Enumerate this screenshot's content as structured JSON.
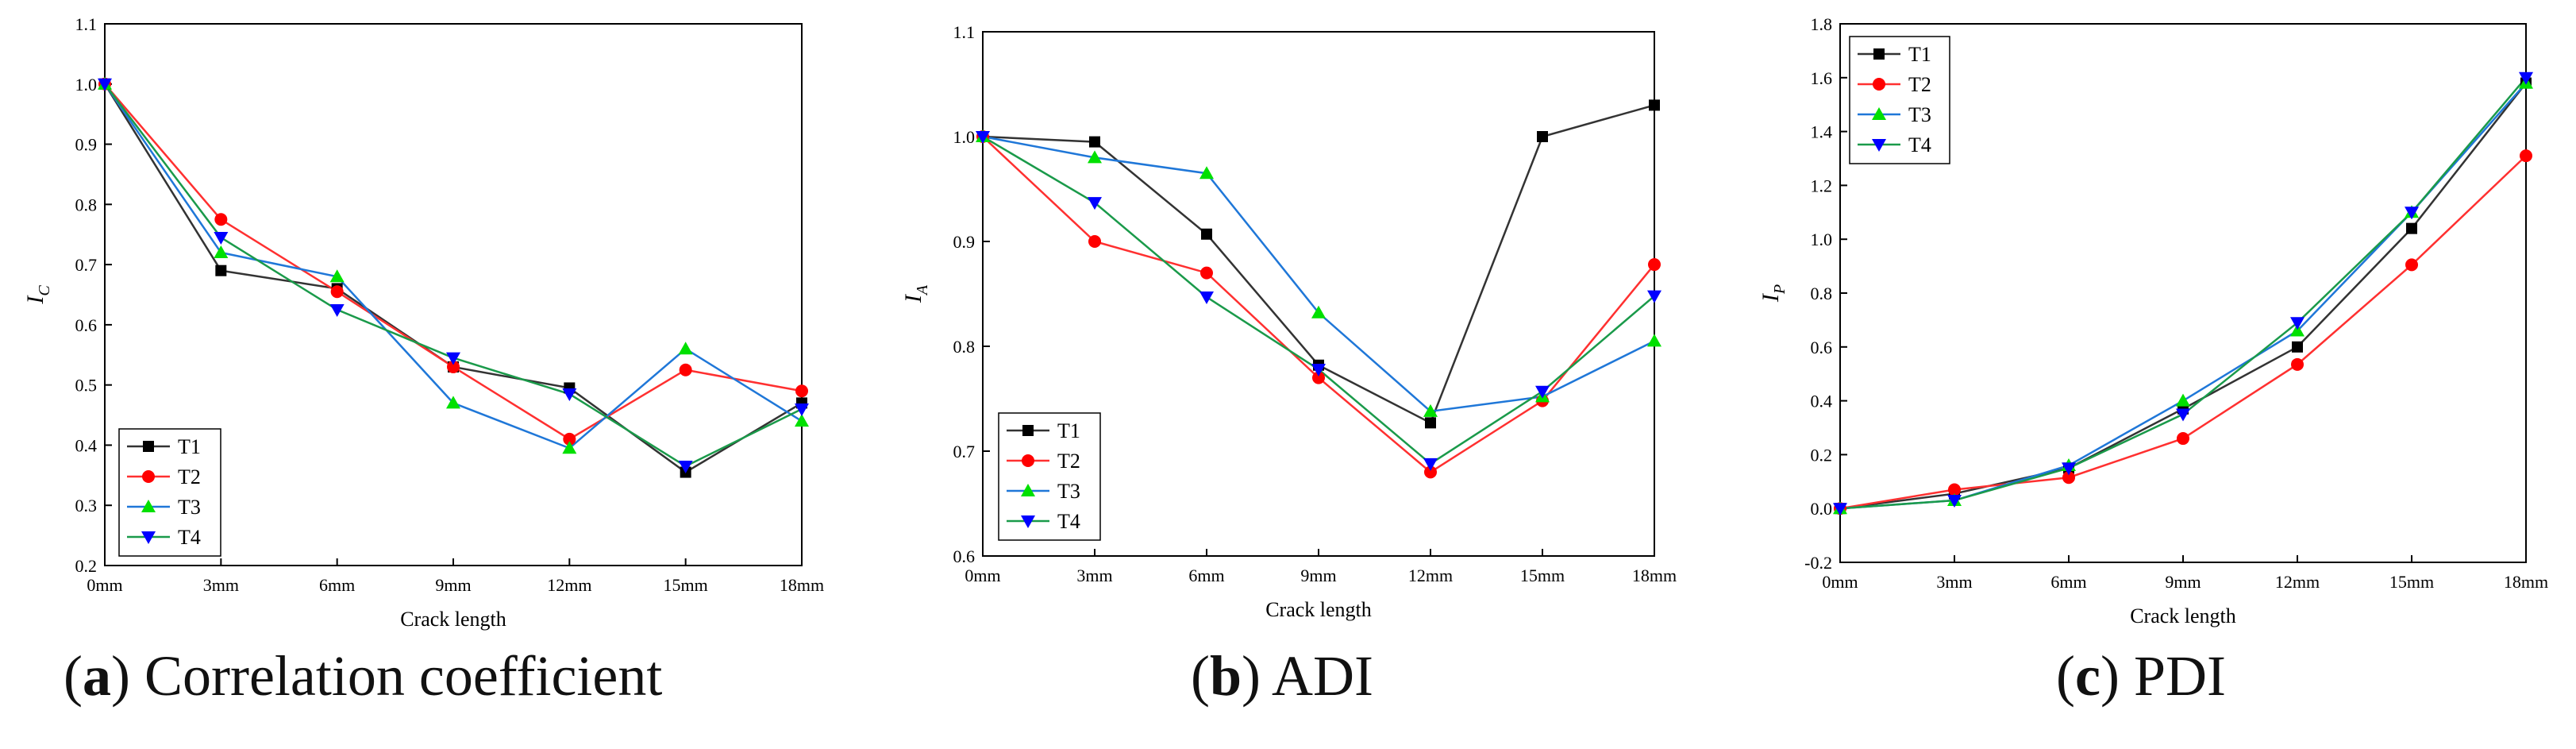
{
  "colors": {
    "T1": "#000000",
    "T2": "#ff0000",
    "T3": "#00e000",
    "T4": "#0000ff",
    "T1_line": "#333333",
    "T2_line": "#ff3030",
    "T3_line": "#1f77d8",
    "T4_line": "#1a9a4a"
  },
  "chart_data": [
    {
      "type": "line",
      "caption_letter": "a",
      "title": "Correlation coefficient",
      "xlabel": "Crack length",
      "ylabel": "I",
      "ylabel_sub": "C",
      "categories": [
        "0mm",
        "3mm",
        "6mm",
        "9mm",
        "12mm",
        "15mm",
        "18mm"
      ],
      "ylim": [
        0.2,
        1.1
      ],
      "yticks": [
        "0.2",
        "0.3",
        "0.4",
        "0.5",
        "0.6",
        "0.7",
        "0.8",
        "0.9",
        "1.0",
        "1.1"
      ],
      "yticks_values": [
        0.2,
        0.3,
        0.4,
        0.5,
        0.6,
        0.7,
        0.8,
        0.9,
        1.0,
        1.1
      ],
      "legend": "bottom-left",
      "series": [
        {
          "name": "T1",
          "marker": "square",
          "values": [
            1.0,
            0.69,
            0.66,
            0.53,
            0.495,
            0.355,
            0.47
          ]
        },
        {
          "name": "T2",
          "marker": "circle",
          "values": [
            1.0,
            0.775,
            0.655,
            0.53,
            0.41,
            0.525,
            0.49
          ]
        },
        {
          "name": "T3",
          "marker": "triangle-up",
          "values": [
            1.0,
            0.72,
            0.68,
            0.47,
            0.395,
            0.56,
            0.44
          ]
        },
        {
          "name": "T4",
          "marker": "triangle-down",
          "values": [
            1.0,
            0.745,
            0.625,
            0.545,
            0.485,
            0.365,
            0.46
          ]
        }
      ]
    },
    {
      "type": "line",
      "caption_letter": "b",
      "title": "ADI",
      "xlabel": "Crack length",
      "ylabel": "I",
      "ylabel_sub": "A",
      "categories": [
        "0mm",
        "3mm",
        "6mm",
        "9mm",
        "12mm",
        "15mm",
        "18mm"
      ],
      "ylim": [
        0.6,
        1.1
      ],
      "yticks": [
        "0.6",
        "0.7",
        "0.8",
        "0.9",
        "1.0",
        "1.1"
      ],
      "yticks_values": [
        0.6,
        0.7,
        0.8,
        0.9,
        1.0,
        1.1
      ],
      "legend": "bottom-left",
      "series": [
        {
          "name": "T1",
          "marker": "square",
          "values": [
            1.0,
            0.995,
            0.907,
            0.782,
            0.727,
            1.0,
            1.03
          ]
        },
        {
          "name": "T2",
          "marker": "circle",
          "values": [
            1.0,
            0.9,
            0.87,
            0.77,
            0.68,
            0.748,
            0.878
          ]
        },
        {
          "name": "T3",
          "marker": "triangle-up",
          "values": [
            1.0,
            0.98,
            0.965,
            0.832,
            0.738,
            0.752,
            0.805
          ]
        },
        {
          "name": "T4",
          "marker": "triangle-down",
          "values": [
            1.0,
            0.937,
            0.847,
            0.778,
            0.688,
            0.757,
            0.848
          ]
        }
      ]
    },
    {
      "type": "line",
      "caption_letter": "c",
      "title": "PDI",
      "xlabel": "Crack length",
      "ylabel": "I",
      "ylabel_sub": "P",
      "categories": [
        "0mm",
        "3mm",
        "6mm",
        "9mm",
        "12mm",
        "15mm",
        "18mm"
      ],
      "ylim": [
        -0.2,
        1.8
      ],
      "yticks": [
        "-0.2",
        "0.0",
        "0.2",
        "0.4",
        "0.6",
        "0.8",
        "1.0",
        "1.2",
        "1.4",
        "1.6",
        "1.8"
      ],
      "yticks_values": [
        -0.2,
        0.0,
        0.2,
        0.4,
        0.6,
        0.8,
        1.0,
        1.2,
        1.4,
        1.6,
        1.8
      ],
      "legend": "top-left",
      "series": [
        {
          "name": "T1",
          "marker": "square",
          "values": [
            0.0,
            0.055,
            0.15,
            0.37,
            0.6,
            1.04,
            1.58
          ]
        },
        {
          "name": "T2",
          "marker": "circle",
          "values": [
            0.0,
            0.07,
            0.115,
            0.26,
            0.535,
            0.905,
            1.31
          ]
        },
        {
          "name": "T3",
          "marker": "triangle-up",
          "values": [
            0.0,
            0.03,
            0.16,
            0.4,
            0.66,
            1.1,
            1.58
          ]
        },
        {
          "name": "T4",
          "marker": "triangle-down",
          "values": [
            0.0,
            0.03,
            0.15,
            0.35,
            0.69,
            1.1,
            1.6
          ]
        }
      ]
    }
  ]
}
